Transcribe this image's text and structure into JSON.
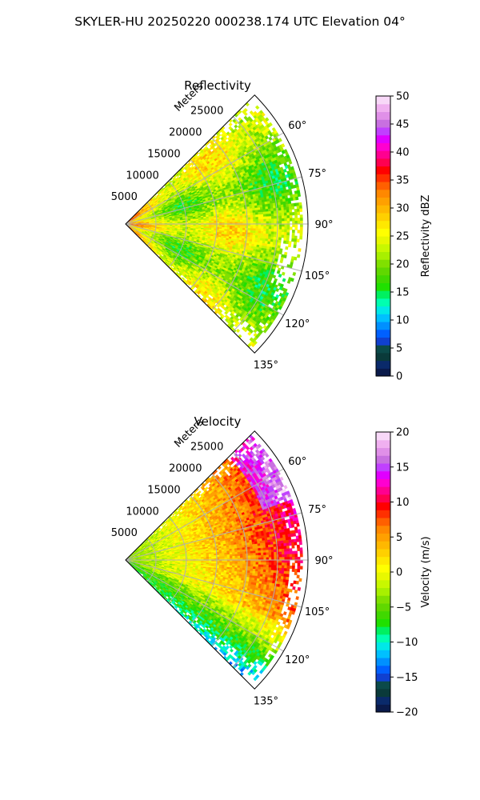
{
  "figure_title": "SKYLER-HU  20250220  000238.174 UTC Elevation 04°",
  "chart_data": [
    {
      "type": "ppi-sector",
      "title": "Reflectivity",
      "radial_label": "Meters",
      "range_ticks": [
        5000,
        10000,
        15000,
        20000,
        25000
      ],
      "azimuth_ticks": [
        60,
        75,
        90,
        105,
        120,
        135
      ],
      "azimuth_tick_labels": [
        "60°",
        "75°",
        "90°",
        "105°",
        "120°",
        "135°"
      ],
      "azimuth_range_deg": [
        45,
        135
      ],
      "max_range_m": 30000,
      "grid": true,
      "colorbar": {
        "label": "Reflectivity dBZ",
        "min": 0,
        "max": 50,
        "ticks": [
          0,
          5,
          10,
          15,
          20,
          25,
          30,
          35,
          40,
          45,
          50
        ],
        "tick_labels": [
          "0",
          "5",
          "10",
          "15",
          "20",
          "25",
          "30",
          "35",
          "40",
          "45",
          "50"
        ],
        "colors": [
          "#0a1a4a",
          "#0a2a6a",
          "#0a3a3a",
          "#0b4a4a",
          "#1040d0",
          "#0060ff",
          "#0090ff",
          "#00c0ff",
          "#00e8e8",
          "#00ffb0",
          "#00f060",
          "#20e000",
          "#40d800",
          "#60d800",
          "#80e000",
          "#a8f000",
          "#c8f800",
          "#e8f800",
          "#ffff00",
          "#ffe800",
          "#ffd000",
          "#ffb800",
          "#ffa000",
          "#ff8800",
          "#ff6000",
          "#ff3000",
          "#ff0000",
          "#ff0050",
          "#ff0090",
          "#ff00d0",
          "#e000ff",
          "#c040ff",
          "#c870e0",
          "#e090e8",
          "#f0b0f0",
          "#f8d8f8"
        ]
      }
    },
    {
      "type": "ppi-sector",
      "title": "Velocity",
      "radial_label": "Meters",
      "range_ticks": [
        5000,
        10000,
        15000,
        20000,
        25000
      ],
      "azimuth_ticks": [
        60,
        75,
        90,
        105,
        120,
        135
      ],
      "azimuth_tick_labels": [
        "60°",
        "75°",
        "90°",
        "105°",
        "120°",
        "135°"
      ],
      "azimuth_range_deg": [
        45,
        135
      ],
      "max_range_m": 30000,
      "grid": true,
      "colorbar": {
        "label": "Velocity (m/s)",
        "min": -20,
        "max": 20,
        "ticks": [
          -20,
          -15,
          -10,
          -5,
          0,
          5,
          10,
          15,
          20
        ],
        "tick_labels": [
          "−20",
          "−15",
          "−10",
          "−5",
          "0",
          "5",
          "10",
          "15",
          "20"
        ],
        "colors": [
          "#0a1a4a",
          "#0a2a6a",
          "#0a3a3a",
          "#0b4a4a",
          "#1040d0",
          "#0060ff",
          "#0090ff",
          "#00c0ff",
          "#00e8e8",
          "#00ffb0",
          "#00f060",
          "#20e000",
          "#40d800",
          "#60d800",
          "#80e000",
          "#a8f000",
          "#c8f800",
          "#e8f800",
          "#ffff00",
          "#ffe800",
          "#ffd000",
          "#ffb800",
          "#ffa000",
          "#ff8800",
          "#ff6000",
          "#ff3000",
          "#ff0000",
          "#ff0050",
          "#ff0090",
          "#ff00d0",
          "#e000ff",
          "#c040ff",
          "#c870e0",
          "#e090e8",
          "#f0b0f0",
          "#f8d8f8"
        ]
      }
    }
  ]
}
